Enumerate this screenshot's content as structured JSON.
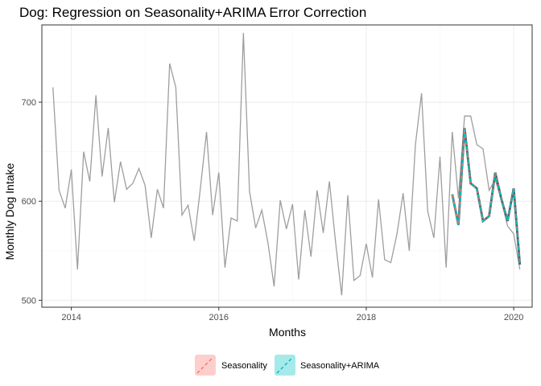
{
  "chart_data": {
    "type": "line",
    "title": "Dog: Regression on Seasonality+ARIMA Error Correction",
    "xlabel": "Months",
    "ylabel": "Monthly Dog Intake",
    "xlim": [
      2013.6,
      2020.25
    ],
    "ylim": [
      493,
      778
    ],
    "x_ticks": [
      2014,
      2016,
      2018,
      2020
    ],
    "y_ticks": [
      500,
      600,
      700
    ],
    "grid": true,
    "legend_position": "bottom",
    "colors": {
      "actual": "#9e9e9e",
      "seasonality": "#F8766D",
      "seasonality_arima": "#00BFC4",
      "dark_overlay": "#595959",
      "grid_major": "#ebebeb",
      "grid_minor": "#f5f5f5",
      "panel_border": "#333333"
    },
    "actual": {
      "start_year": 2013,
      "start_month": 10,
      "values": [
        715,
        611,
        593,
        632,
        531,
        650,
        620,
        707,
        625,
        674,
        599,
        640,
        612,
        618,
        633,
        616,
        563,
        612,
        593,
        739,
        715,
        586,
        596,
        560,
        613,
        670,
        586,
        629,
        533,
        583,
        580,
        770,
        610,
        573,
        591,
        558,
        514,
        601,
        572,
        597,
        521,
        591,
        544,
        611,
        568,
        620,
        559,
        505,
        606,
        520,
        525,
        557,
        523,
        602,
        541,
        538,
        567,
        608,
        550,
        657,
        709,
        590,
        563,
        645,
        533,
        670,
        603,
        686,
        686,
        657,
        653,
        611,
        622,
        601,
        575,
        567,
        531
      ]
    },
    "series": [
      {
        "name": "Seasonality",
        "start_year": 2019,
        "start_month": 3,
        "values": [
          607,
          576,
          674,
          618,
          613,
          580,
          585,
          629,
          602,
          580,
          613,
          536
        ]
      },
      {
        "name": "Seasonality+ARIMA",
        "start_year": 2019,
        "start_month": 3,
        "values": [
          607,
          576,
          673,
          618,
          613,
          580,
          585,
          628,
          602,
          580,
          613,
          536
        ]
      }
    ]
  }
}
